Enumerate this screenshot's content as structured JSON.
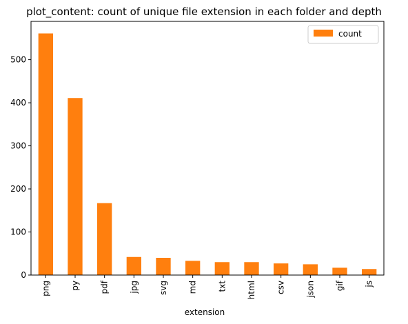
{
  "chart_data": {
    "type": "bar",
    "title": "plot_content: count of unique file extension in each folder and depth",
    "xlabel": "extension",
    "ylabel": "",
    "categories": [
      "png",
      "py",
      "pdf",
      "jpg",
      "svg",
      "md",
      "txt",
      "html",
      "csv",
      "json",
      "gif",
      "js"
    ],
    "series": [
      {
        "name": "count",
        "color": "#ff7f0e",
        "values": [
          561,
          411,
          167,
          42,
          40,
          33,
          30,
          30,
          27,
          25,
          17,
          14
        ]
      }
    ],
    "ylim": [
      0,
      589
    ],
    "yticks": [
      0,
      100,
      200,
      300,
      400,
      500
    ],
    "legend": "top-right",
    "grid": false
  }
}
